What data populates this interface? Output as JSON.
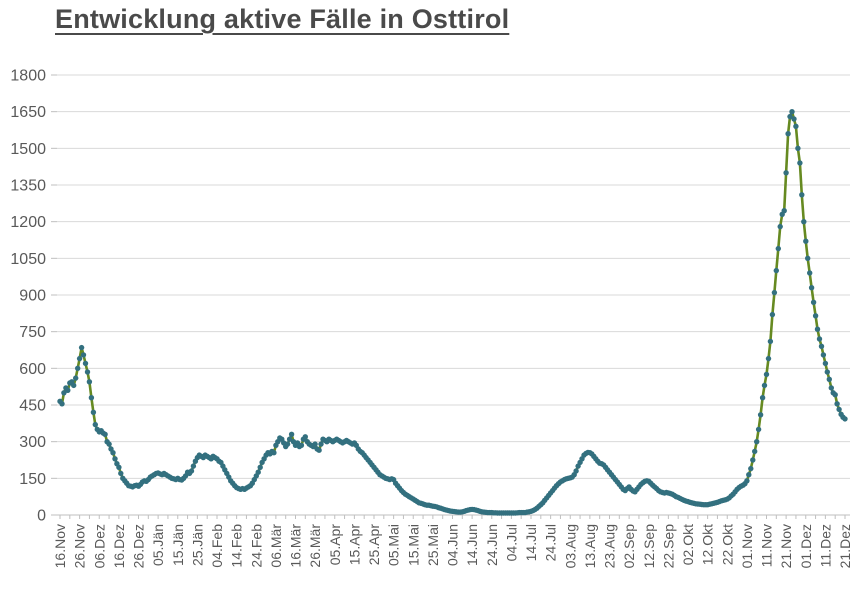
{
  "page": {
    "background": "#ffffff"
  },
  "title": {
    "text": "Entwicklung aktive Fälle in Osttirol",
    "color": "#4a4a4a"
  },
  "chart_data": {
    "type": "line",
    "title": "Entwicklung aktive Fälle in Osttirol",
    "series_name": "aktive Fälle",
    "legend": "none",
    "grid": "horizontal",
    "ylim": [
      0,
      1800
    ],
    "y_tick_step": 150,
    "y_tick_labels": [
      "0",
      "150",
      "300",
      "450",
      "600",
      "750",
      "900",
      "1050",
      "1200",
      "1350",
      "1500",
      "1650",
      "1800"
    ],
    "x_tick_labels": [
      "16.Nov",
      "26.Nov",
      "06.Dez",
      "16.Dez",
      "26.Dez",
      "05.Jän",
      "15.Jän",
      "25.Jän",
      "04.Feb",
      "14.Feb",
      "24.Feb",
      "06.Mär",
      "16.Mär",
      "26.Mär",
      "05.Apr",
      "15.Apr",
      "25.Apr",
      "05.Mai",
      "15.Mai",
      "25.Mai",
      "04.Jun",
      "14.Jun",
      "24.Jun",
      "04.Jul",
      "14.Jul",
      "24.Jul",
      "03.Aug",
      "13.Aug",
      "23.Aug",
      "02.Sep",
      "12.Sep",
      "22.Sep",
      "02.Okt",
      "12.Okt",
      "22.Okt",
      "01.Nov",
      "11.Nov",
      "21.Nov",
      "01.Dez",
      "11.Dez",
      "21.Dez"
    ],
    "x_tick_interval_days": 10,
    "points_per_tick_interval": 10,
    "minor_tick_interval_days": 5,
    "values": [
      465,
      455,
      500,
      520,
      510,
      540,
      545,
      530,
      560,
      600,
      640,
      685,
      655,
      620,
      585,
      545,
      480,
      420,
      370,
      350,
      340,
      345,
      335,
      330,
      300,
      290,
      270,
      255,
      230,
      210,
      195,
      170,
      150,
      140,
      130,
      120,
      118,
      115,
      120,
      122,
      118,
      125,
      135,
      140,
      138,
      145,
      155,
      160,
      165,
      170,
      172,
      168,
      165,
      170,
      165,
      160,
      155,
      150,
      148,
      145,
      150,
      145,
      143,
      150,
      160,
      175,
      170,
      180,
      200,
      220,
      235,
      245,
      240,
      235,
      245,
      240,
      235,
      230,
      240,
      235,
      230,
      220,
      215,
      200,
      185,
      170,
      155,
      140,
      130,
      120,
      112,
      108,
      105,
      108,
      105,
      110,
      115,
      120,
      130,
      145,
      160,
      175,
      195,
      215,
      230,
      245,
      255,
      250,
      260,
      255,
      285,
      300,
      315,
      310,
      295,
      280,
      290,
      310,
      330,
      300,
      285,
      295,
      280,
      285,
      310,
      320,
      300,
      290,
      285,
      280,
      290,
      270,
      265,
      290,
      310,
      305,
      300,
      310,
      305,
      300,
      305,
      310,
      305,
      300,
      295,
      300,
      305,
      300,
      295,
      290,
      295,
      285,
      270,
      260,
      255,
      245,
      235,
      225,
      215,
      205,
      195,
      185,
      175,
      165,
      160,
      155,
      150,
      148,
      145,
      148,
      145,
      130,
      120,
      110,
      100,
      92,
      85,
      80,
      75,
      70,
      65,
      60,
      55,
      50,
      48,
      45,
      42,
      40,
      40,
      38,
      36,
      35,
      33,
      30,
      28,
      25,
      22,
      20,
      18,
      16,
      15,
      14,
      13,
      12,
      12,
      13,
      15,
      18,
      20,
      22,
      23,
      22,
      20,
      18,
      15,
      13,
      12,
      11,
      10,
      10,
      10,
      9,
      9,
      8,
      8,
      8,
      8,
      8,
      8,
      8,
      8,
      8,
      8,
      9,
      10,
      10,
      10,
      10,
      12,
      13,
      15,
      18,
      22,
      28,
      35,
      42,
      50,
      60,
      70,
      80,
      90,
      100,
      110,
      120,
      128,
      135,
      140,
      145,
      148,
      150,
      152,
      155,
      165,
      180,
      200,
      215,
      230,
      245,
      252,
      256,
      255,
      250,
      240,
      230,
      220,
      212,
      210,
      205,
      195,
      185,
      175,
      165,
      155,
      145,
      135,
      125,
      115,
      105,
      100,
      108,
      115,
      105,
      98,
      95,
      105,
      115,
      125,
      132,
      138,
      140,
      138,
      130,
      122,
      115,
      108,
      100,
      95,
      92,
      90,
      92,
      90,
      88,
      85,
      80,
      75,
      72,
      68,
      64,
      60,
      57,
      55,
      52,
      50,
      48,
      46,
      45,
      44,
      43,
      42,
      42,
      42,
      44,
      46,
      48,
      50,
      52,
      55,
      58,
      60,
      62,
      65,
      70,
      78,
      85,
      95,
      105,
      112,
      118,
      122,
      128,
      140,
      165,
      190,
      225,
      260,
      300,
      350,
      410,
      480,
      530,
      575,
      640,
      710,
      820,
      910,
      1000,
      1090,
      1180,
      1230,
      1245,
      1400,
      1560,
      1630,
      1650,
      1620,
      1590,
      1500,
      1440,
      1310,
      1200,
      1120,
      1050,
      990,
      930,
      870,
      815,
      760,
      720,
      690,
      655,
      620,
      585,
      555,
      520,
      500,
      492,
      455,
      432,
      412,
      400,
      393
    ],
    "line_color": "#668a21",
    "marker_color": "#33707f",
    "axis_color": "#bfbfbf",
    "gridline_color": "#d9d9d9",
    "label_color": "#595959"
  }
}
